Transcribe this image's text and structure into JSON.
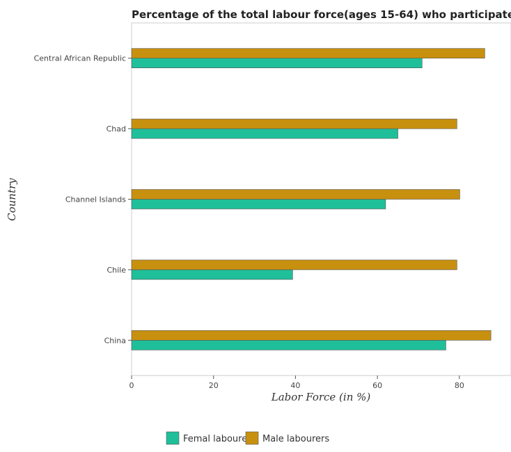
{
  "chart_data": {
    "type": "bar",
    "orientation": "horizontal",
    "title": "Percentage of the total labour force(ages 15-64) who participate",
    "xlabel": "Labor Force (in %)",
    "ylabel": "Country",
    "categories": [
      "Central African Republic",
      "Chad",
      "Channel Islands",
      "Chile",
      "China"
    ],
    "series": [
      {
        "name": "Femal labourers",
        "color": "#1fbf9a",
        "values": [
          70.9,
          65.0,
          62.0,
          39.3,
          76.7
        ]
      },
      {
        "name": "Male labourers",
        "color": "#c8900f",
        "values": [
          86.2,
          79.4,
          80.1,
          79.4,
          87.7
        ]
      }
    ],
    "xlim": [
      0,
      92.6
    ],
    "xticks": [
      "0",
      "20",
      "40",
      "60",
      "80"
    ],
    "grid": false,
    "legend_position": "bottom-center"
  }
}
